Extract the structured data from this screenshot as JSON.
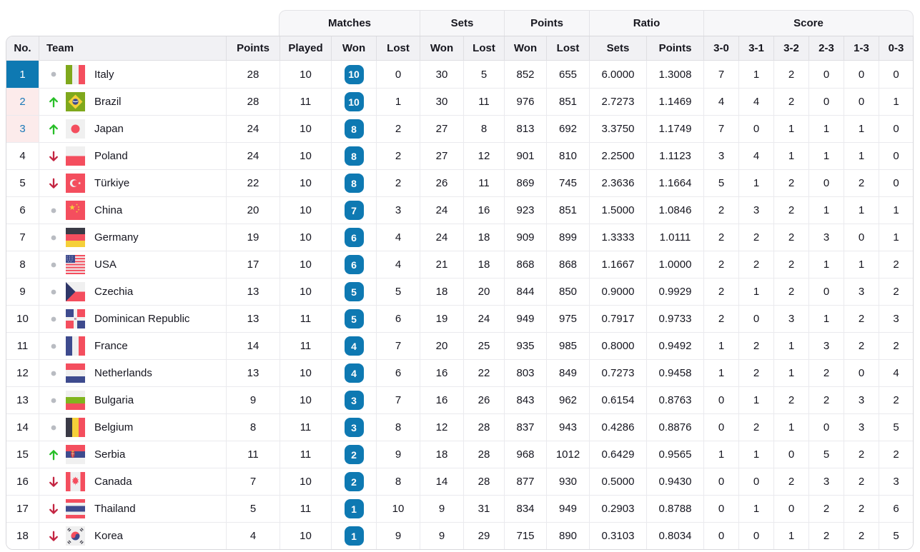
{
  "colors": {
    "accent_blue": "#0E79B2",
    "podium_pink": "#FCEBEB",
    "rank_link_blue": "#1B79B8",
    "trend_up_green": "#27BE27",
    "trend_down_red": "#C32441",
    "neutral_dot_gray": "#B9BCC2"
  },
  "table": {
    "groups": [
      {
        "label": "Matches"
      },
      {
        "label": "Sets"
      },
      {
        "label": "Points"
      },
      {
        "label": "Ratio"
      },
      {
        "label": "Score"
      }
    ],
    "columns": [
      "No.",
      "Team",
      "Points",
      "Played",
      "Won",
      "Lost",
      "Won",
      "Lost",
      "Won",
      "Lost",
      "Sets",
      "Points",
      "3-0",
      "3-1",
      "3-2",
      "2-3",
      "1-3",
      "0-3"
    ],
    "rows": [
      {
        "no": "1",
        "highlight": "first",
        "trend": "same",
        "flag": "italy",
        "team": "Italy",
        "points": "28",
        "played": "10",
        "won": "10",
        "lost": "0",
        "sets_won": "30",
        "sets_lost": "5",
        "points_won": "852",
        "points_lost": "655",
        "ratio_sets": "6.0000",
        "ratio_points": "1.3008",
        "s30": "7",
        "s31": "1",
        "s32": "2",
        "s23": "0",
        "s13": "0",
        "s03": "0"
      },
      {
        "no": "2",
        "highlight": "podium",
        "trend": "up",
        "flag": "brazil",
        "team": "Brazil",
        "points": "28",
        "played": "11",
        "won": "10",
        "lost": "1",
        "sets_won": "30",
        "sets_lost": "11",
        "points_won": "976",
        "points_lost": "851",
        "ratio_sets": "2.7273",
        "ratio_points": "1.1469",
        "s30": "4",
        "s31": "4",
        "s32": "2",
        "s23": "0",
        "s13": "0",
        "s03": "1"
      },
      {
        "no": "3",
        "highlight": "podium",
        "trend": "up",
        "flag": "japan",
        "team": "Japan",
        "points": "24",
        "played": "10",
        "won": "8",
        "lost": "2",
        "sets_won": "27",
        "sets_lost": "8",
        "points_won": "813",
        "points_lost": "692",
        "ratio_sets": "3.3750",
        "ratio_points": "1.1749",
        "s30": "7",
        "s31": "0",
        "s32": "1",
        "s23": "1",
        "s13": "1",
        "s03": "0"
      },
      {
        "no": "4",
        "highlight": "none",
        "trend": "down",
        "flag": "poland",
        "team": "Poland",
        "points": "24",
        "played": "10",
        "won": "8",
        "lost": "2",
        "sets_won": "27",
        "sets_lost": "12",
        "points_won": "901",
        "points_lost": "810",
        "ratio_sets": "2.2500",
        "ratio_points": "1.1123",
        "s30": "3",
        "s31": "4",
        "s32": "1",
        "s23": "1",
        "s13": "1",
        "s03": "0"
      },
      {
        "no": "5",
        "highlight": "none",
        "trend": "down",
        "flag": "turkiye",
        "team": "Türkiye",
        "points": "22",
        "played": "10",
        "won": "8",
        "lost": "2",
        "sets_won": "26",
        "sets_lost": "11",
        "points_won": "869",
        "points_lost": "745",
        "ratio_sets": "2.3636",
        "ratio_points": "1.1664",
        "s30": "5",
        "s31": "1",
        "s32": "2",
        "s23": "0",
        "s13": "2",
        "s03": "0"
      },
      {
        "no": "6",
        "highlight": "none",
        "trend": "same",
        "flag": "china",
        "team": "China",
        "points": "20",
        "played": "10",
        "won": "7",
        "lost": "3",
        "sets_won": "24",
        "sets_lost": "16",
        "points_won": "923",
        "points_lost": "851",
        "ratio_sets": "1.5000",
        "ratio_points": "1.0846",
        "s30": "2",
        "s31": "3",
        "s32": "2",
        "s23": "1",
        "s13": "1",
        "s03": "1"
      },
      {
        "no": "7",
        "highlight": "none",
        "trend": "same",
        "flag": "germany",
        "team": "Germany",
        "points": "19",
        "played": "10",
        "won": "6",
        "lost": "4",
        "sets_won": "24",
        "sets_lost": "18",
        "points_won": "909",
        "points_lost": "899",
        "ratio_sets": "1.3333",
        "ratio_points": "1.0111",
        "s30": "2",
        "s31": "2",
        "s32": "2",
        "s23": "3",
        "s13": "0",
        "s03": "1"
      },
      {
        "no": "8",
        "highlight": "none",
        "trend": "same",
        "flag": "usa",
        "team": "USA",
        "points": "17",
        "played": "10",
        "won": "6",
        "lost": "4",
        "sets_won": "21",
        "sets_lost": "18",
        "points_won": "868",
        "points_lost": "868",
        "ratio_sets": "1.1667",
        "ratio_points": "1.0000",
        "s30": "2",
        "s31": "2",
        "s32": "2",
        "s23": "1",
        "s13": "1",
        "s03": "2"
      },
      {
        "no": "9",
        "highlight": "none",
        "trend": "same",
        "flag": "czechia",
        "team": "Czechia",
        "points": "13",
        "played": "10",
        "won": "5",
        "lost": "5",
        "sets_won": "18",
        "sets_lost": "20",
        "points_won": "844",
        "points_lost": "850",
        "ratio_sets": "0.9000",
        "ratio_points": "0.9929",
        "s30": "2",
        "s31": "1",
        "s32": "2",
        "s23": "0",
        "s13": "3",
        "s03": "2"
      },
      {
        "no": "10",
        "highlight": "none",
        "trend": "same",
        "flag": "dominican-republic",
        "team": "Dominican Republic",
        "points": "13",
        "played": "11",
        "won": "5",
        "lost": "6",
        "sets_won": "19",
        "sets_lost": "24",
        "points_won": "949",
        "points_lost": "975",
        "ratio_sets": "0.7917",
        "ratio_points": "0.9733",
        "s30": "2",
        "s31": "0",
        "s32": "3",
        "s23": "1",
        "s13": "2",
        "s03": "3"
      },
      {
        "no": "11",
        "highlight": "none",
        "trend": "same",
        "flag": "france",
        "team": "France",
        "points": "14",
        "played": "11",
        "won": "4",
        "lost": "7",
        "sets_won": "20",
        "sets_lost": "25",
        "points_won": "935",
        "points_lost": "985",
        "ratio_sets": "0.8000",
        "ratio_points": "0.9492",
        "s30": "1",
        "s31": "2",
        "s32": "1",
        "s23": "3",
        "s13": "2",
        "s03": "2"
      },
      {
        "no": "12",
        "highlight": "none",
        "trend": "same",
        "flag": "netherlands",
        "team": "Netherlands",
        "points": "13",
        "played": "10",
        "won": "4",
        "lost": "6",
        "sets_won": "16",
        "sets_lost": "22",
        "points_won": "803",
        "points_lost": "849",
        "ratio_sets": "0.7273",
        "ratio_points": "0.9458",
        "s30": "1",
        "s31": "2",
        "s32": "1",
        "s23": "2",
        "s13": "0",
        "s03": "4"
      },
      {
        "no": "13",
        "highlight": "none",
        "trend": "same",
        "flag": "bulgaria",
        "team": "Bulgaria",
        "points": "9",
        "played": "10",
        "won": "3",
        "lost": "7",
        "sets_won": "16",
        "sets_lost": "26",
        "points_won": "843",
        "points_lost": "962",
        "ratio_sets": "0.6154",
        "ratio_points": "0.8763",
        "s30": "0",
        "s31": "1",
        "s32": "2",
        "s23": "2",
        "s13": "3",
        "s03": "2"
      },
      {
        "no": "14",
        "highlight": "none",
        "trend": "same",
        "flag": "belgium",
        "team": "Belgium",
        "points": "8",
        "played": "11",
        "won": "3",
        "lost": "8",
        "sets_won": "12",
        "sets_lost": "28",
        "points_won": "837",
        "points_lost": "943",
        "ratio_sets": "0.4286",
        "ratio_points": "0.8876",
        "s30": "0",
        "s31": "2",
        "s32": "1",
        "s23": "0",
        "s13": "3",
        "s03": "5"
      },
      {
        "no": "15",
        "highlight": "none",
        "trend": "up",
        "flag": "serbia",
        "team": "Serbia",
        "points": "11",
        "played": "11",
        "won": "2",
        "lost": "9",
        "sets_won": "18",
        "sets_lost": "28",
        "points_won": "968",
        "points_lost": "1012",
        "ratio_sets": "0.6429",
        "ratio_points": "0.9565",
        "s30": "1",
        "s31": "1",
        "s32": "0",
        "s23": "5",
        "s13": "2",
        "s03": "2"
      },
      {
        "no": "16",
        "highlight": "none",
        "trend": "down",
        "flag": "canada",
        "team": "Canada",
        "points": "7",
        "played": "10",
        "won": "2",
        "lost": "8",
        "sets_won": "14",
        "sets_lost": "28",
        "points_won": "877",
        "points_lost": "930",
        "ratio_sets": "0.5000",
        "ratio_points": "0.9430",
        "s30": "0",
        "s31": "0",
        "s32": "2",
        "s23": "3",
        "s13": "2",
        "s03": "3"
      },
      {
        "no": "17",
        "highlight": "none",
        "trend": "down",
        "flag": "thailand",
        "team": "Thailand",
        "points": "5",
        "played": "11",
        "won": "1",
        "lost": "10",
        "sets_won": "9",
        "sets_lost": "31",
        "points_won": "834",
        "points_lost": "949",
        "ratio_sets": "0.2903",
        "ratio_points": "0.8788",
        "s30": "0",
        "s31": "1",
        "s32": "0",
        "s23": "2",
        "s13": "2",
        "s03": "6"
      },
      {
        "no": "18",
        "highlight": "none",
        "trend": "down",
        "flag": "korea",
        "team": "Korea",
        "points": "4",
        "played": "10",
        "won": "1",
        "lost": "9",
        "sets_won": "9",
        "sets_lost": "29",
        "points_won": "715",
        "points_lost": "890",
        "ratio_sets": "0.3103",
        "ratio_points": "0.8034",
        "s30": "0",
        "s31": "0",
        "s32": "1",
        "s23": "2",
        "s13": "2",
        "s03": "5"
      }
    ]
  }
}
